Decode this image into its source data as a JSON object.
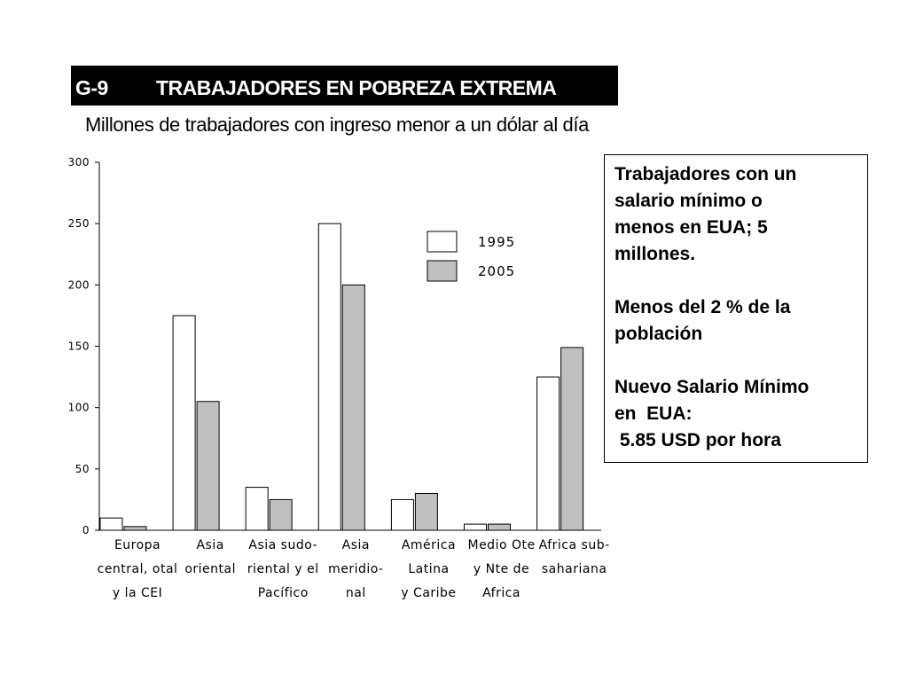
{
  "header": {
    "code": "G-9",
    "title": "TRABAJADORES EN POBREZA EXTREMA",
    "subtitle": "Millones de trabajadores con ingreso menor a un dólar al día"
  },
  "colors": {
    "title_bg": "#000000",
    "bar_1995": "#ffffff",
    "bar_2005": "#c0c0c0",
    "stroke": "#000000"
  },
  "chart_data": {
    "type": "bar",
    "categories": [
      [
        "Europa",
        "central, otal",
        "y la CEI"
      ],
      [
        "Asia",
        "oriental"
      ],
      [
        "Asia sudo-",
        "riental y el",
        "Pacífico"
      ],
      [
        "Asia",
        "meridio-",
        "nal"
      ],
      [
        "América",
        "Latina",
        "y Caribe"
      ],
      [
        "Medio Ote",
        "y Nte de",
        "Africa"
      ],
      [
        "Africa sub-",
        "sahariana"
      ]
    ],
    "series": [
      {
        "name": "1995",
        "values": [
          10,
          175,
          35,
          250,
          25,
          5,
          125
        ]
      },
      {
        "name": "2005",
        "values": [
          3,
          105,
          25,
          200,
          30,
          5,
          149
        ]
      }
    ],
    "yticks": [
      "0",
      "50",
      "100",
      "150",
      "200",
      "250",
      "300"
    ],
    "ylim": [
      0,
      300
    ],
    "grid": false,
    "legend_position": "top-right"
  },
  "callout": {
    "paragraphs": [
      [
        "Trabajadores con un",
        "salario mínimo o",
        "menos en EUA; 5",
        "millones."
      ],
      [
        "Menos del 2 % de la",
        "población"
      ],
      [
        "Nuevo Salario Mínimo",
        "en  EUA:",
        " 5.85 USD por hora"
      ]
    ]
  }
}
